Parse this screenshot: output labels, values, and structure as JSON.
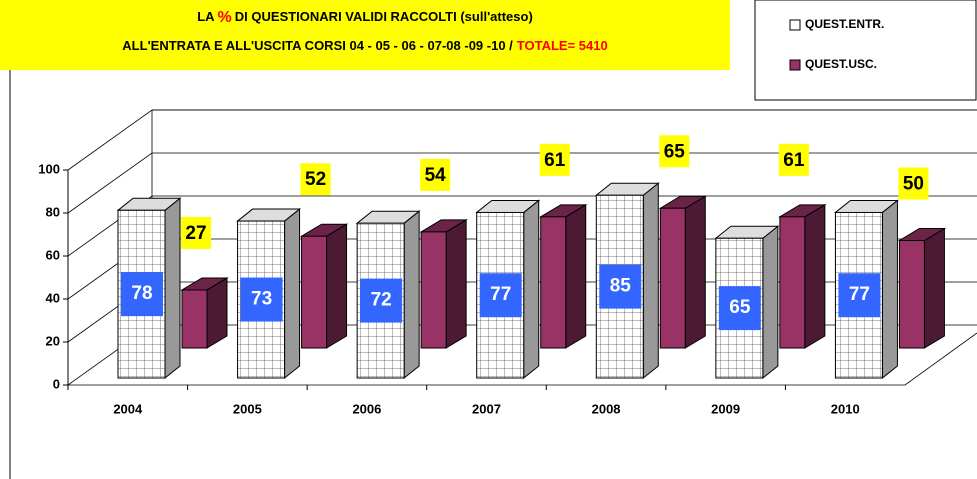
{
  "chart_data": {
    "type": "bar3d",
    "title": [
      "LA",
      "%",
      "DI QUESTIONARI VALIDI RACCOLTI (sull'atteso)"
    ],
    "title_colors": [
      "#000000",
      "#ff0000",
      "#000000"
    ],
    "subtitle": [
      "ALL'ENTRATA  E  ALL'USCITA  CORSI  04 - 05 - 06 - 07-08 -09 -10 /",
      "TOTALE= 5410"
    ],
    "subtitle_colors": [
      "#000000",
      "#ff0000"
    ],
    "categories": [
      "2004",
      "2005",
      "2006",
      "2007",
      "2008",
      "2009",
      "2010"
    ],
    "series": [
      {
        "name": "QUEST.ENTR.",
        "color": "#ffffff",
        "values": [
          78,
          73,
          72,
          77,
          85,
          65,
          77
        ]
      },
      {
        "name": "QUEST.USC.",
        "color": "#993366",
        "values": [
          27,
          52,
          54,
          61,
          65,
          61,
          50
        ]
      }
    ],
    "ylim": [
      0,
      100
    ],
    "yticks": [
      0,
      20,
      40,
      60,
      80,
      100
    ],
    "grid": true,
    "legend": "top-right"
  }
}
